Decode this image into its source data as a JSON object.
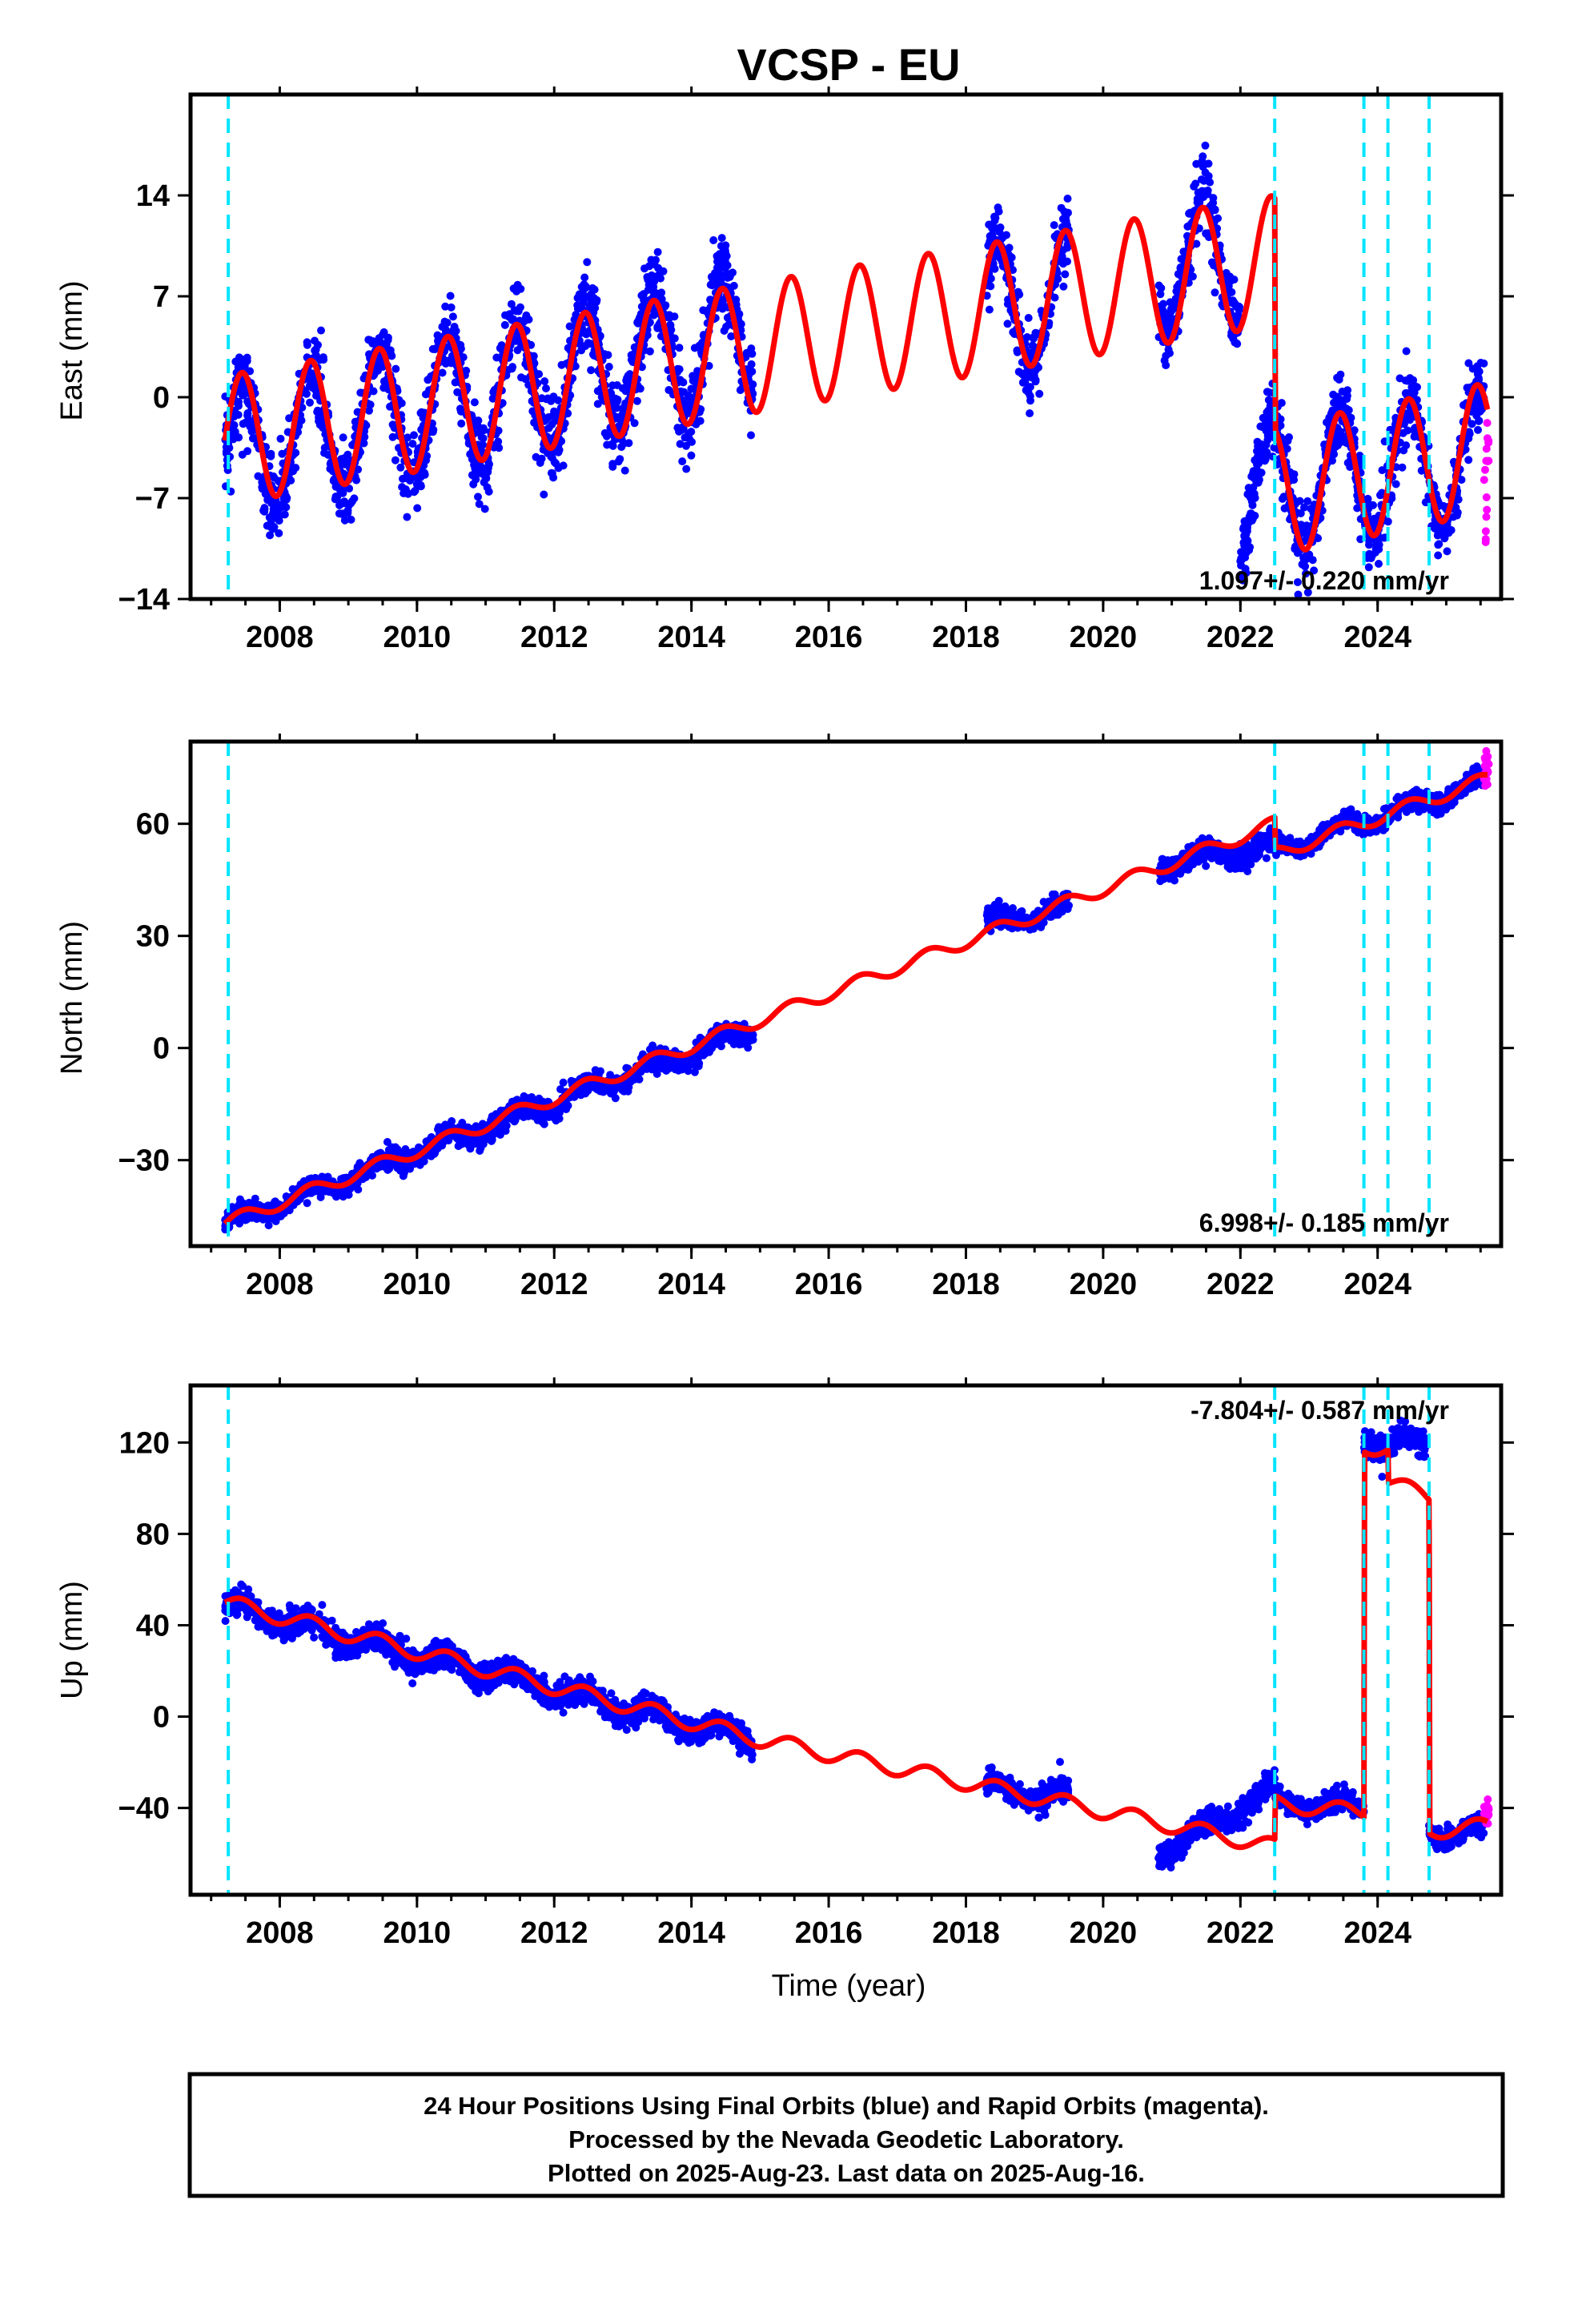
{
  "title": "VCSP - EU",
  "colors": {
    "final_orbits": "#0000ff",
    "rapid_orbits": "#ff00ff",
    "model": "#ff0000",
    "events": "#00e5ff"
  },
  "footer": {
    "lines": [
      "24 Hour Positions Using Final Orbits (blue) and Rapid Orbits (magenta).",
      "Processed by the Nevada Geodetic Laboratory.",
      "Plotted on 2025-Aug-23. Last data on 2025-Aug-16."
    ]
  },
  "chart_data": [
    {
      "type": "scatter",
      "panel": "east",
      "ylabel": "East (mm)",
      "xlabel": "",
      "xlim": [
        2006.7,
        2025.8
      ],
      "ylim": [
        -14,
        21
      ],
      "yticks": [
        -14,
        -7,
        0,
        7,
        14
      ],
      "ytick_labels": [
        "−14",
        "−7",
        "0",
        "7",
        "14"
      ],
      "xticks": [
        2008,
        2010,
        2012,
        2014,
        2016,
        2018,
        2020,
        2022,
        2024
      ],
      "xtick_labels": [
        "2008",
        "2010",
        "2012",
        "2014",
        "2016",
        "2018",
        "2020",
        "2022",
        "2024"
      ],
      "rate_label": "1.097+/- 0.220 mm/yr",
      "events": [
        2007.25,
        2022.5,
        2023.8,
        2024.15,
        2024.75
      ],
      "clusters": [
        {
          "x0": 2007.2,
          "x1": 2014.9,
          "y0": -4,
          "y1": 4.3,
          "spread": 2.6
        },
        {
          "x0": 2018.3,
          "x1": 2019.5,
          "y0": 6,
          "y1": 6.6,
          "spread": 2.6
        },
        {
          "x0": 2020.8,
          "x1": 2022.0,
          "y0": 9,
          "y1": 9.5,
          "spread": 2.2
        },
        {
          "x0": 2022.0,
          "x1": 2025.55,
          "y0": -6.5,
          "y1": -4,
          "spread": 2.3
        }
      ],
      "rapid": {
        "x0": 2025.55,
        "x1": 2025.62,
        "y": -5
      },
      "model": {
        "base": [
          [
            2007.2,
            -3
          ],
          [
            2015.0,
            3.5
          ],
          [
            2022.5,
            9.5
          ],
          [
            2022.51,
            -6.5
          ],
          [
            2025.6,
            -3.5
          ]
        ],
        "amplitude": 4.5
      }
    },
    {
      "type": "scatter",
      "panel": "north",
      "ylabel": "North (mm)",
      "xlabel": "",
      "xlim": [
        2006.7,
        2025.8
      ],
      "ylim": [
        -53,
        82
      ],
      "yticks": [
        -30,
        0,
        30,
        60
      ],
      "ytick_labels": [
        "−30",
        "0",
        "30",
        "60"
      ],
      "xticks": [
        2008,
        2010,
        2012,
        2014,
        2016,
        2018,
        2020,
        2022,
        2024
      ],
      "xtick_labels": [
        "2008",
        "2010",
        "2012",
        "2014",
        "2016",
        "2018",
        "2020",
        "2022",
        "2024"
      ],
      "rate_label": "6.998+/- 0.185 mm/yr",
      "events": [
        2007.25,
        2022.5,
        2023.8,
        2024.15,
        2024.75
      ],
      "clusters": [
        {
          "x0": 2007.2,
          "x1": 2014.9,
          "y0": -47,
          "y1": 5,
          "spread": 2.5
        },
        {
          "x0": 2018.3,
          "x1": 2019.5,
          "y0": 33,
          "y1": 38,
          "spread": 2.5
        },
        {
          "x0": 2020.8,
          "x1": 2022.5,
          "y0": 49,
          "y1": 54,
          "spread": 2.8
        },
        {
          "x0": 2022.5,
          "x1": 2025.55,
          "y0": 53,
          "y1": 71,
          "spread": 2.2
        }
      ],
      "rapid": {
        "x0": 2025.55,
        "x1": 2025.62,
        "y": 74
      },
      "model": {
        "base": [
          [
            2007.2,
            -47
          ],
          [
            2022.5,
            60
          ],
          [
            2022.51,
            52
          ],
          [
            2025.6,
            72
          ]
        ],
        "amplitude": 1.8
      }
    },
    {
      "type": "scatter",
      "panel": "up",
      "ylabel": "Up (mm)",
      "xlabel": "Time (year)",
      "xlim": [
        2006.7,
        2025.8
      ],
      "ylim": [
        -78,
        145
      ],
      "yticks": [
        -40,
        0,
        40,
        80,
        120
      ],
      "ytick_labels": [
        "−40",
        "0",
        "40",
        "80",
        "120"
      ],
      "xticks": [
        2008,
        2010,
        2012,
        2014,
        2016,
        2018,
        2020,
        2022,
        2024
      ],
      "xtick_labels": [
        "2008",
        "2010",
        "2012",
        "2014",
        "2016",
        "2018",
        "2020",
        "2022",
        "2024"
      ],
      "rate_label": "-7.804+/- 0.587 mm/yr",
      "events": [
        2007.25,
        2022.5,
        2023.8,
        2024.15,
        2024.75
      ],
      "clusters": [
        {
          "x0": 2007.2,
          "x1": 2014.9,
          "y0": 48,
          "y1": -10,
          "spread": 5
        },
        {
          "x0": 2018.3,
          "x1": 2019.5,
          "y0": -32,
          "y1": -35,
          "spread": 5
        },
        {
          "x0": 2020.8,
          "x1": 2022.5,
          "y0": -60,
          "y1": -32,
          "spread": 5
        },
        {
          "x0": 2022.5,
          "x1": 2023.8,
          "y0": -37,
          "y1": -40,
          "spread": 4
        },
        {
          "x0": 2023.8,
          "x1": 2024.7,
          "y0": 122,
          "y1": 118,
          "spread": 5
        },
        {
          "x0": 2024.75,
          "x1": 2025.55,
          "y0": -50,
          "y1": -51,
          "spread": 4
        }
      ],
      "rapid": {
        "x0": 2025.55,
        "x1": 2025.62,
        "y": -42
      },
      "model": {
        "base": [
          [
            2007.2,
            50
          ],
          [
            2015.0,
            -10
          ],
          [
            2022.5,
            -57
          ],
          [
            2022.51,
            -38
          ],
          [
            2023.8,
            -42
          ],
          [
            2023.81,
            118
          ],
          [
            2024.15,
            118
          ],
          [
            2024.16,
            103
          ],
          [
            2024.75,
            96
          ],
          [
            2024.76,
            -50
          ],
          [
            2025.6,
            -48
          ]
        ],
        "amplitude": 3.5
      }
    }
  ]
}
